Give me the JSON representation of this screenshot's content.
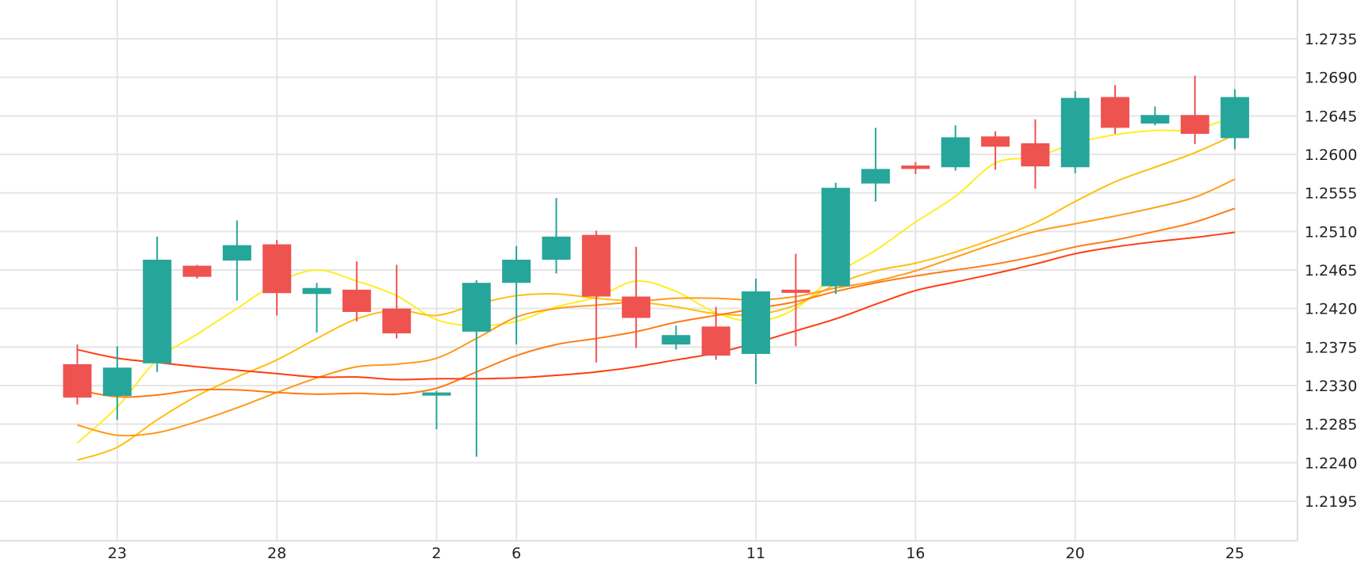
{
  "chart_data": {
    "type": "candlestick",
    "ylim": [
      1.215,
      1.2775
    ],
    "y_ticks": [
      "1.2195",
      "1.2240",
      "1.2285",
      "1.2330",
      "1.2375",
      "1.2420",
      "1.2465",
      "1.2510",
      "1.2555",
      "1.2600",
      "1.2645",
      "1.2690",
      "1.2735"
    ],
    "x_ticks": [
      {
        "label": "23",
        "i": 1
      },
      {
        "label": "28",
        "i": 5
      },
      {
        "label": "2",
        "i": 9
      },
      {
        "label": "6",
        "i": 11
      },
      {
        "label": "11",
        "i": 17
      },
      {
        "label": "16",
        "i": 21
      },
      {
        "label": "20",
        "i": 25
      },
      {
        "label": "25",
        "i": 29
      }
    ],
    "grid": true,
    "colors": {
      "up": "#26a69a",
      "down": "#ef5350",
      "grid": "#e5e5e5",
      "axis": "#e0e0e0"
    },
    "candles": [
      {
        "o": 1.2355,
        "h": 1.2378,
        "l": 1.2308,
        "c": 1.2316
      },
      {
        "o": 1.2318,
        "h": 1.2376,
        "l": 1.229,
        "c": 1.2351
      },
      {
        "o": 1.2356,
        "h": 1.2504,
        "l": 1.2346,
        "c": 1.2477
      },
      {
        "o": 1.247,
        "h": 1.2471,
        "l": 1.2455,
        "c": 1.2457
      },
      {
        "o": 1.2476,
        "h": 1.2523,
        "l": 1.2429,
        "c": 1.2494
      },
      {
        "o": 1.2495,
        "h": 1.25,
        "l": 1.2412,
        "c": 1.2438
      },
      {
        "o": 1.2437,
        "h": 1.245,
        "l": 1.2392,
        "c": 1.2444
      },
      {
        "o": 1.2442,
        "h": 1.2475,
        "l": 1.2405,
        "c": 1.2416
      },
      {
        "o": 1.242,
        "h": 1.2471,
        "l": 1.2385,
        "c": 1.2391
      },
      {
        "o": 1.2321,
        "h": 1.2324,
        "l": 1.2279,
        "c": 1.2322
      },
      {
        "o": 1.2393,
        "h": 1.2453,
        "l": 1.2247,
        "c": 1.245
      },
      {
        "o": 1.245,
        "h": 1.2493,
        "l": 1.2378,
        "c": 1.2477
      },
      {
        "o": 1.2477,
        "h": 1.2549,
        "l": 1.2461,
        "c": 1.2504
      },
      {
        "o": 1.2506,
        "h": 1.2511,
        "l": 1.2357,
        "c": 1.2434
      },
      {
        "o": 1.2434,
        "h": 1.2492,
        "l": 1.2374,
        "c": 1.2409
      },
      {
        "o": 1.2378,
        "h": 1.24,
        "l": 1.2372,
        "c": 1.2389
      },
      {
        "o": 1.2399,
        "h": 1.2422,
        "l": 1.236,
        "c": 1.2365
      },
      {
        "o": 1.2367,
        "h": 1.2455,
        "l": 1.2332,
        "c": 1.244
      },
      {
        "o": 1.2442,
        "h": 1.2484,
        "l": 1.2376,
        "c": 1.2439
      },
      {
        "o": 1.2446,
        "h": 1.2567,
        "l": 1.2437,
        "c": 1.2561
      },
      {
        "o": 1.2566,
        "h": 1.2631,
        "l": 1.2545,
        "c": 1.2583
      },
      {
        "o": 1.2587,
        "h": 1.2591,
        "l": 1.2577,
        "c": 1.2583
      },
      {
        "o": 1.2585,
        "h": 1.2634,
        "l": 1.2581,
        "c": 1.262
      },
      {
        "o": 1.2621,
        "h": 1.2627,
        "l": 1.2582,
        "c": 1.2609
      },
      {
        "o": 1.2613,
        "h": 1.2641,
        "l": 1.256,
        "c": 1.2586
      },
      {
        "o": 1.2585,
        "h": 1.2674,
        "l": 1.2578,
        "c": 1.2666
      },
      {
        "o": 1.2667,
        "h": 1.2681,
        "l": 1.2624,
        "c": 1.2631
      },
      {
        "o": 1.2636,
        "h": 1.2656,
        "l": 1.2634,
        "c": 1.2646
      },
      {
        "o": 1.2646,
        "h": 1.2692,
        "l": 1.2612,
        "c": 1.2624
      },
      {
        "o": 1.2619,
        "h": 1.2676,
        "l": 1.2606,
        "c": 1.2667
      }
    ],
    "series": [
      {
        "color": "#ffee22",
        "values": [
          1.2263,
          1.2305,
          1.236,
          1.239,
          1.242,
          1.245,
          1.2465,
          1.2452,
          1.2435,
          1.2407,
          1.24,
          1.2405,
          1.2422,
          1.2433,
          1.2452,
          1.244,
          1.2415,
          1.2405,
          1.242,
          1.246,
          1.2488,
          1.2521,
          1.2551,
          1.259,
          1.2597,
          1.2613,
          1.2623,
          1.2628,
          1.2629,
          1.2645
        ]
      },
      {
        "color": "#ffbf10",
        "values": [
          1.2243,
          1.2258,
          1.229,
          1.2318,
          1.234,
          1.236,
          1.2385,
          1.2408,
          1.2418,
          1.2412,
          1.2425,
          1.2435,
          1.2437,
          1.2432,
          1.2428,
          1.2422,
          1.2414,
          1.2413,
          1.2424,
          1.2448,
          1.2464,
          1.2473,
          1.2486,
          1.2502,
          1.252,
          1.2545,
          1.2568,
          1.2585,
          1.2602,
          1.2623
        ]
      },
      {
        "color": "#ff9a18",
        "values": [
          1.2284,
          1.2272,
          1.2275,
          1.2288,
          1.2304,
          1.2322,
          1.2339,
          1.2352,
          1.2355,
          1.2362,
          1.2385,
          1.241,
          1.242,
          1.2424,
          1.2428,
          1.2432,
          1.2432,
          1.243,
          1.2434,
          1.2444,
          1.2452,
          1.2464,
          1.248,
          1.2496,
          1.251,
          1.2519,
          1.2528,
          1.2538,
          1.255,
          1.2571
        ]
      },
      {
        "color": "#ff7a14",
        "values": [
          1.2325,
          1.2317,
          1.2319,
          1.2325,
          1.2325,
          1.2322,
          1.232,
          1.2321,
          1.232,
          1.2327,
          1.2346,
          1.2365,
          1.2378,
          1.2385,
          1.2393,
          1.2404,
          1.2412,
          1.242,
          1.2428,
          1.244,
          1.245,
          1.2458,
          1.2465,
          1.2472,
          1.2481,
          1.2492,
          1.25,
          1.251,
          1.2521,
          1.2537
        ]
      },
      {
        "color": "#ff3d10",
        "values": [
          1.2372,
          1.2362,
          1.2357,
          1.2352,
          1.2348,
          1.2344,
          1.234,
          1.234,
          1.2337,
          1.2338,
          1.2338,
          1.2339,
          1.2342,
          1.2346,
          1.2352,
          1.236,
          1.2368,
          1.238,
          1.2394,
          1.2408,
          1.2425,
          1.2441,
          1.2451,
          1.2461,
          1.2472,
          1.2484,
          1.2492,
          1.2498,
          1.2503,
          1.2509
        ]
      }
    ]
  }
}
